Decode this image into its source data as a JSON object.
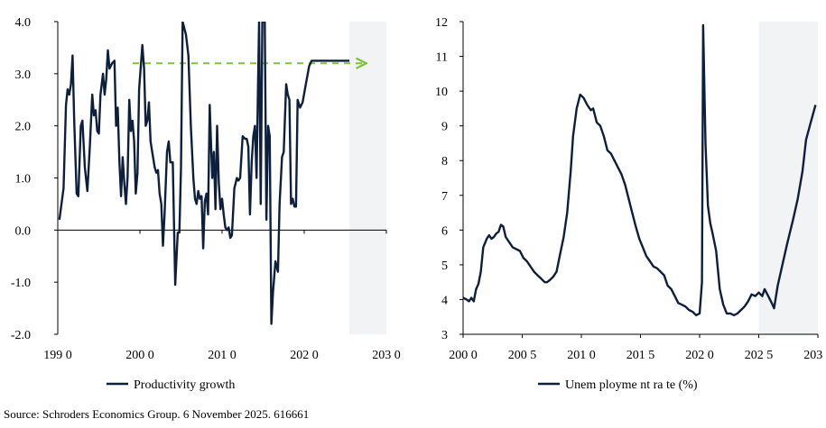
{
  "source_text": "Source: Schroders Economics Group. 6 November 2025. 616661",
  "colors": {
    "line": "#0d1f3c",
    "forecast_shade": "#f2f3f5",
    "arrow": "#7cc242",
    "axis": "#000000"
  },
  "chart_data": [
    {
      "type": "line",
      "title": "",
      "xlabel": "",
      "ylabel": "",
      "xlim": [
        1990,
        2030
      ],
      "ylim": [
        -2.0,
        4.0
      ],
      "x_ticks": [
        1990,
        2000,
        2010,
        2020,
        2030
      ],
      "x_tick_labels": [
        "199 0",
        "200 0",
        "201 0",
        "202 0",
        "203 0"
      ],
      "y_ticks": [
        -2.0,
        -1.0,
        0.0,
        1.0,
        2.0,
        3.0,
        4.0
      ],
      "y_tick_labels": [
        "-2.0",
        "-1.0",
        "0.0",
        "1.0",
        "2.0",
        "3.0",
        "4.0"
      ],
      "forecast_shading_x": [
        2025.5,
        2030
      ],
      "grid": false,
      "legend_position": "bottom",
      "annotation_arrow": {
        "style": "dashed",
        "x_from": 2000,
        "x_to": 2027,
        "y": 3.2
      },
      "series": [
        {
          "name": "Productivity growth",
          "points": [
            [
              1990.2,
              0.2
            ],
            [
              1990.7,
              0.8
            ],
            [
              1991.0,
              2.4
            ],
            [
              1991.2,
              2.7
            ],
            [
              1991.4,
              2.6
            ],
            [
              1991.6,
              2.8
            ],
            [
              1991.8,
              3.35
            ],
            [
              1992.0,
              2.1
            ],
            [
              1992.3,
              0.7
            ],
            [
              1992.5,
              0.65
            ],
            [
              1992.8,
              2.0
            ],
            [
              1993.0,
              2.1
            ],
            [
              1993.3,
              1.2
            ],
            [
              1993.6,
              0.75
            ],
            [
              1993.9,
              1.6
            ],
            [
              1994.2,
              2.6
            ],
            [
              1994.4,
              2.2
            ],
            [
              1994.6,
              2.3
            ],
            [
              1994.8,
              1.9
            ],
            [
              1995.0,
              1.85
            ],
            [
              1995.2,
              2.6
            ],
            [
              1995.5,
              3.0
            ],
            [
              1995.7,
              2.6
            ],
            [
              1995.9,
              2.9
            ],
            [
              1996.1,
              3.45
            ],
            [
              1996.3,
              3.1
            ],
            [
              1996.6,
              3.2
            ],
            [
              1996.9,
              3.25
            ],
            [
              1997.1,
              2.0
            ],
            [
              1997.3,
              2.35
            ],
            [
              1997.5,
              1.3
            ],
            [
              1997.7,
              0.65
            ],
            [
              1997.9,
              1.4
            ],
            [
              1998.1,
              0.9
            ],
            [
              1998.3,
              0.5
            ],
            [
              1998.5,
              1.0
            ],
            [
              1998.7,
              2.5
            ],
            [
              1998.9,
              1.9
            ],
            [
              1999.1,
              2.1
            ],
            [
              1999.3,
              1.7
            ],
            [
              1999.5,
              0.7
            ],
            [
              1999.7,
              1.1
            ],
            [
              1999.9,
              2.7
            ],
            [
              2000.3,
              3.55
            ],
            [
              2000.5,
              3.1
            ],
            [
              2000.7,
              2.0
            ],
            [
              2000.9,
              2.1
            ],
            [
              2001.1,
              2.45
            ],
            [
              2001.3,
              1.7
            ],
            [
              2001.5,
              1.5
            ],
            [
              2001.8,
              1.2
            ],
            [
              2002.0,
              1.1
            ],
            [
              2002.2,
              1.15
            ],
            [
              2002.4,
              0.7
            ],
            [
              2002.6,
              0.5
            ],
            [
              2002.8,
              -0.3
            ],
            [
              2003.0,
              0.3
            ],
            [
              2003.3,
              1.5
            ],
            [
              2003.5,
              1.7
            ],
            [
              2003.7,
              1.3
            ],
            [
              2004.0,
              1.3
            ],
            [
              2004.3,
              -1.05
            ],
            [
              2004.6,
              -0.05
            ],
            [
              2004.8,
              -0.05
            ],
            [
              2005.0,
              1.2
            ],
            [
              2005.2,
              4.0
            ],
            [
              2005.6,
              3.75
            ],
            [
              2005.9,
              3.35
            ],
            [
              2006.2,
              2.0
            ],
            [
              2006.5,
              1.0
            ],
            [
              2006.7,
              0.6
            ],
            [
              2006.9,
              0.5
            ],
            [
              2007.1,
              0.75
            ],
            [
              2007.3,
              0.6
            ],
            [
              2007.5,
              0.65
            ],
            [
              2007.7,
              -0.35
            ],
            [
              2007.9,
              0.55
            ],
            [
              2008.1,
              0.7
            ],
            [
              2008.3,
              0.3
            ],
            [
              2008.5,
              2.4
            ],
            [
              2008.8,
              1.0
            ],
            [
              2009.0,
              1.5
            ],
            [
              2009.2,
              0.4
            ],
            [
              2009.4,
              2.0
            ],
            [
              2009.6,
              0.9
            ],
            [
              2009.8,
              0.4
            ],
            [
              2010.0,
              0.6
            ],
            [
              2010.2,
              0.3
            ],
            [
              2010.4,
              0.05
            ],
            [
              2010.6,
              0.0
            ],
            [
              2010.8,
              0.05
            ],
            [
              2011.0,
              -0.15
            ],
            [
              2011.2,
              -0.1
            ],
            [
              2011.5,
              0.8
            ],
            [
              2011.8,
              1.0
            ],
            [
              2012.0,
              0.95
            ],
            [
              2012.2,
              1.0
            ],
            [
              2012.5,
              1.8
            ],
            [
              2012.8,
              1.75
            ],
            [
              2013.0,
              1.75
            ],
            [
              2013.2,
              1.6
            ],
            [
              2013.4,
              0.3
            ],
            [
              2013.6,
              1.3
            ],
            [
              2013.8,
              1.8
            ],
            [
              2014.0,
              2.0
            ],
            [
              2014.2,
              1.0
            ],
            [
              2014.3,
              2.0
            ],
            [
              2014.5,
              4.0
            ],
            [
              2014.7,
              0.5
            ],
            [
              2014.9,
              4.0
            ],
            [
              2015.2,
              4.0
            ],
            [
              2015.4,
              0.2
            ],
            [
              2015.6,
              2.0
            ],
            [
              2015.8,
              1.8
            ],
            [
              2016.0,
              -1.8
            ],
            [
              2016.2,
              -1.2
            ],
            [
              2016.5,
              -0.6
            ],
            [
              2016.8,
              -0.8
            ],
            [
              2017.0,
              0.5
            ],
            [
              2017.3,
              1.4
            ],
            [
              2017.5,
              1.5
            ],
            [
              2017.8,
              2.8
            ],
            [
              2018.0,
              2.6
            ],
            [
              2018.2,
              2.5
            ],
            [
              2018.4,
              0.5
            ],
            [
              2018.6,
              0.6
            ],
            [
              2018.8,
              0.45
            ],
            [
              2019.0,
              0.45
            ],
            [
              2019.2,
              2.5
            ],
            [
              2019.5,
              2.35
            ],
            [
              2019.8,
              2.45
            ],
            [
              2020.2,
              2.8
            ],
            [
              2020.6,
              3.15
            ],
            [
              2020.9,
              3.25
            ],
            [
              2021.5,
              3.25
            ],
            [
              2022.5,
              3.25
            ],
            [
              2023.5,
              3.25
            ],
            [
              2024.5,
              3.25
            ],
            [
              2025.5,
              3.25
            ]
          ]
        }
      ]
    },
    {
      "type": "line",
      "title": "",
      "xlabel": "",
      "ylabel": "",
      "xlim": [
        2000,
        2030
      ],
      "ylim": [
        3,
        12
      ],
      "x_ticks": [
        2000,
        2005,
        2010,
        2015,
        2020,
        2025,
        2030
      ],
      "x_tick_labels": [
        "200 0",
        "200 5",
        "201 0",
        "201 5",
        "202 0",
        "202 5",
        "203 0"
      ],
      "y_ticks": [
        3,
        4,
        5,
        6,
        7,
        8,
        9,
        10,
        11,
        12
      ],
      "y_tick_labels": [
        "3",
        "4",
        "5",
        "6",
        "7",
        "8",
        "9",
        "10",
        "11",
        "12"
      ],
      "forecast_shading_x": [
        2025,
        2030
      ],
      "grid": false,
      "legend_position": "bottom",
      "series": [
        {
          "name": "Unem ployme nt ra te  (%)",
          "points": [
            [
              2000.0,
              4.05
            ],
            [
              2000.3,
              4.0
            ],
            [
              2000.5,
              3.95
            ],
            [
              2000.7,
              4.05
            ],
            [
              2000.9,
              3.95
            ],
            [
              2001.1,
              4.3
            ],
            [
              2001.3,
              4.45
            ],
            [
              2001.5,
              4.8
            ],
            [
              2001.7,
              5.5
            ],
            [
              2002.0,
              5.75
            ],
            [
              2002.2,
              5.85
            ],
            [
              2002.4,
              5.75
            ],
            [
              2002.6,
              5.8
            ],
            [
              2002.8,
              5.9
            ],
            [
              2003.0,
              5.95
            ],
            [
              2003.2,
              6.15
            ],
            [
              2003.4,
              6.1
            ],
            [
              2003.6,
              5.8
            ],
            [
              2003.9,
              5.65
            ],
            [
              2004.2,
              5.5
            ],
            [
              2004.5,
              5.45
            ],
            [
              2004.8,
              5.4
            ],
            [
              2005.1,
              5.2
            ],
            [
              2005.4,
              5.1
            ],
            [
              2005.7,
              4.95
            ],
            [
              2006.0,
              4.8
            ],
            [
              2006.3,
              4.7
            ],
            [
              2006.6,
              4.6
            ],
            [
              2006.9,
              4.5
            ],
            [
              2007.1,
              4.5
            ],
            [
              2007.3,
              4.55
            ],
            [
              2007.6,
              4.65
            ],
            [
              2007.9,
              4.8
            ],
            [
              2008.2,
              5.3
            ],
            [
              2008.5,
              5.8
            ],
            [
              2008.8,
              6.5
            ],
            [
              2009.1,
              7.7
            ],
            [
              2009.3,
              8.7
            ],
            [
              2009.6,
              9.5
            ],
            [
              2009.9,
              9.9
            ],
            [
              2010.2,
              9.8
            ],
            [
              2010.5,
              9.6
            ],
            [
              2010.8,
              9.45
            ],
            [
              2011.0,
              9.5
            ],
            [
              2011.3,
              9.1
            ],
            [
              2011.6,
              9.0
            ],
            [
              2011.9,
              8.7
            ],
            [
              2012.2,
              8.3
            ],
            [
              2012.5,
              8.2
            ],
            [
              2012.8,
              8.0
            ],
            [
              2013.1,
              7.8
            ],
            [
              2013.4,
              7.6
            ],
            [
              2013.7,
              7.3
            ],
            [
              2014.0,
              6.9
            ],
            [
              2014.3,
              6.5
            ],
            [
              2014.6,
              6.1
            ],
            [
              2014.9,
              5.75
            ],
            [
              2015.2,
              5.5
            ],
            [
              2015.5,
              5.25
            ],
            [
              2015.8,
              5.1
            ],
            [
              2016.1,
              4.95
            ],
            [
              2016.4,
              4.9
            ],
            [
              2016.7,
              4.8
            ],
            [
              2017.0,
              4.7
            ],
            [
              2017.3,
              4.4
            ],
            [
              2017.6,
              4.3
            ],
            [
              2017.9,
              4.1
            ],
            [
              2018.2,
              3.9
            ],
            [
              2018.5,
              3.85
            ],
            [
              2018.8,
              3.8
            ],
            [
              2019.1,
              3.7
            ],
            [
              2019.4,
              3.65
            ],
            [
              2019.7,
              3.55
            ],
            [
              2020.0,
              3.6
            ],
            [
              2020.2,
              4.5
            ],
            [
              2020.3,
              11.9
            ],
            [
              2020.5,
              8.5
            ],
            [
              2020.7,
              6.7
            ],
            [
              2020.9,
              6.2
            ],
            [
              2021.1,
              5.9
            ],
            [
              2021.4,
              5.4
            ],
            [
              2021.7,
              4.3
            ],
            [
              2022.0,
              3.85
            ],
            [
              2022.3,
              3.6
            ],
            [
              2022.6,
              3.6
            ],
            [
              2022.9,
              3.55
            ],
            [
              2023.2,
              3.6
            ],
            [
              2023.5,
              3.7
            ],
            [
              2023.8,
              3.8
            ],
            [
              2024.1,
              3.95
            ],
            [
              2024.4,
              4.15
            ],
            [
              2024.7,
              4.1
            ],
            [
              2025.0,
              4.2
            ],
            [
              2025.3,
              4.1
            ],
            [
              2025.5,
              4.3
            ],
            [
              2025.8,
              4.1
            ],
            [
              2026.1,
              3.9
            ],
            [
              2026.3,
              3.75
            ],
            [
              2026.6,
              4.4
            ],
            [
              2027.0,
              5.0
            ],
            [
              2027.4,
              5.6
            ],
            [
              2027.9,
              6.3
            ],
            [
              2028.3,
              6.9
            ],
            [
              2028.7,
              7.7
            ],
            [
              2029.0,
              8.6
            ],
            [
              2029.4,
              9.1
            ],
            [
              2029.8,
              9.6
            ]
          ]
        }
      ]
    }
  ]
}
